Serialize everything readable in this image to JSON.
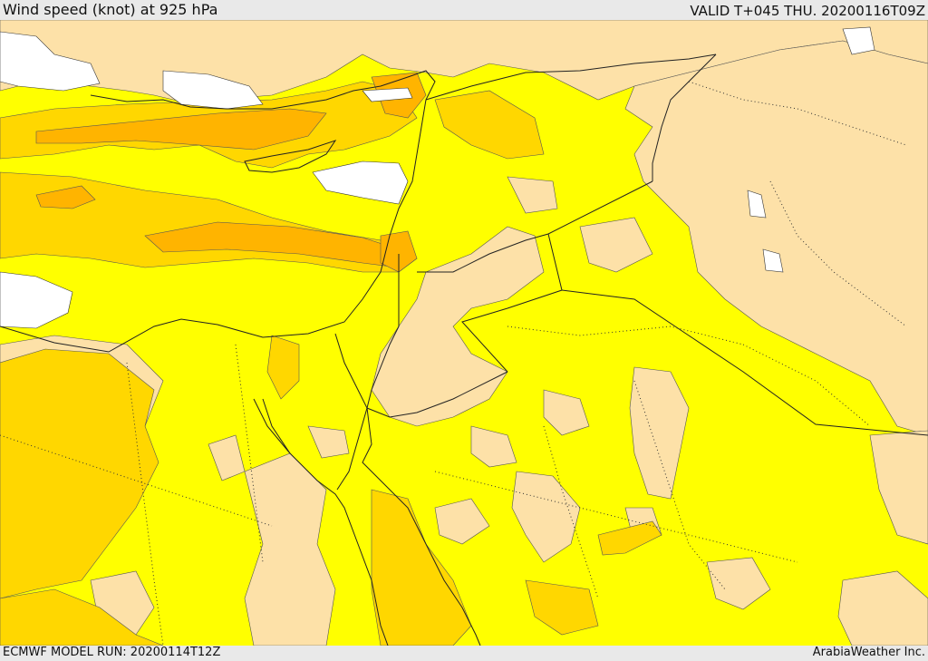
{
  "header": {
    "title": "Wind speed (knot) at 925 hPa",
    "valid": "VALID T+045 THU. 20200116T09Z"
  },
  "footer": {
    "model_run": "ECMWF MODEL RUN: 20200114T12Z",
    "credit": "ArabiaWeather Inc."
  },
  "colors": {
    "calm": "#ffffff",
    "light": "#fde1a8",
    "moderate": "#ffff00",
    "fresh": "#ffd700",
    "strong": "#ffb400",
    "border": "#222222",
    "background": "#e9e9e9"
  }
}
